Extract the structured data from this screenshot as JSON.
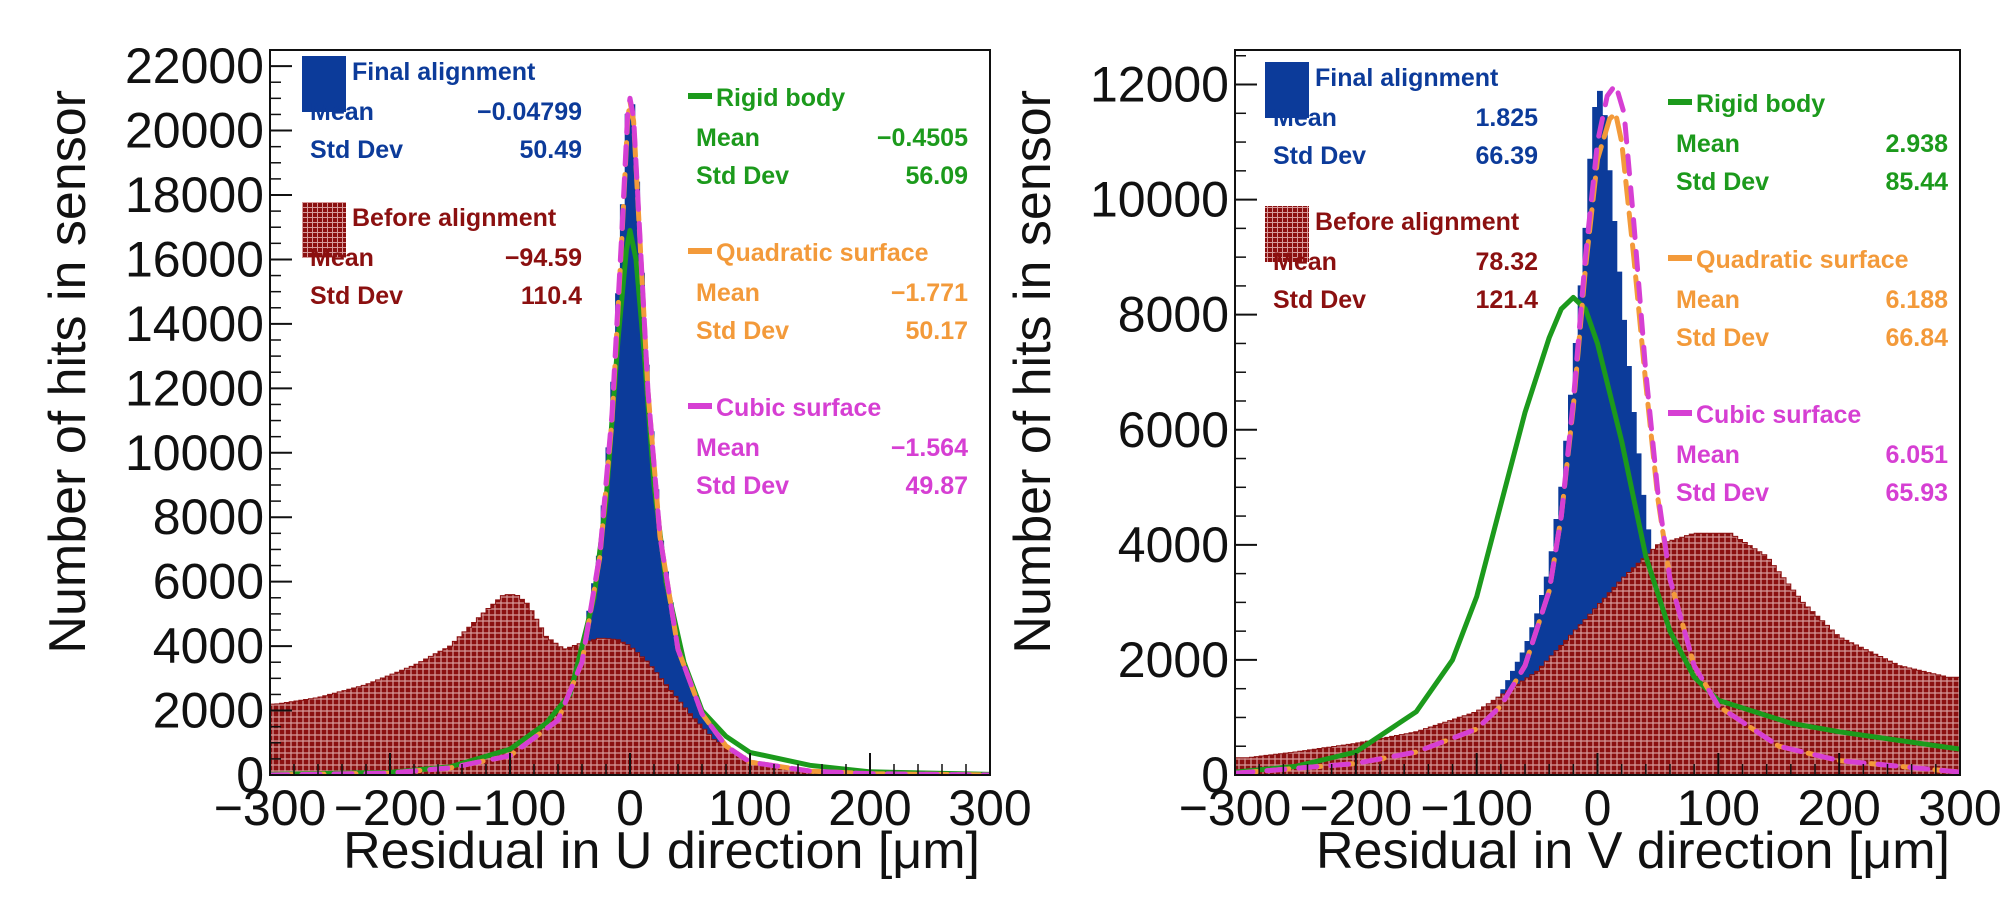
{
  "colors": {
    "final": "#0c3b9a",
    "before": "#8b1010",
    "before_hatch": "#d79a9a",
    "rigid": "#1c9a1c",
    "quadratic": "#f39a3a",
    "cubic": "#d63fd3",
    "axis": "#111111"
  },
  "chart_data": [
    {
      "type": "histogram",
      "xlabel": "Residual in U direction [μm]",
      "ylabel": "Number of hits in sensor",
      "xlim": [
        -300,
        300
      ],
      "ylim": [
        0,
        22500
      ],
      "xticks": [
        "−300",
        "−200",
        "−100",
        "0",
        "100",
        "200",
        "300"
      ],
      "xtick_values": [
        -300,
        -200,
        -100,
        0,
        100,
        200,
        300
      ],
      "yticks": [
        "0",
        "2000",
        "4000",
        "6000",
        "8000",
        "10000",
        "12000",
        "14000",
        "16000",
        "18000",
        "20000",
        "22000"
      ],
      "ytick_values": [
        0,
        2000,
        4000,
        6000,
        8000,
        10000,
        12000,
        14000,
        16000,
        18000,
        20000,
        22000
      ],
      "series": [
        {
          "key": "final",
          "name": "Final alignment",
          "style": "filled",
          "points": [
            [
              -300,
              0
            ],
            [
              -200,
              60
            ],
            [
              -150,
              250
            ],
            [
              -100,
              700
            ],
            [
              -60,
              1900
            ],
            [
              -40,
              3800
            ],
            [
              -25,
              7000
            ],
            [
              -15,
              11500
            ],
            [
              -7,
              17000
            ],
            [
              -2,
              20500
            ],
            [
              0,
              21400
            ],
            [
              3,
              20500
            ],
            [
              8,
              17000
            ],
            [
              15,
              12000
            ],
            [
              25,
              7500
            ],
            [
              40,
              3900
            ],
            [
              60,
              1900
            ],
            [
              80,
              900
            ],
            [
              100,
              400
            ],
            [
              150,
              120
            ],
            [
              200,
              40
            ],
            [
              300,
              0
            ]
          ],
          "stats": {
            "mean": "−0.04799",
            "std": "50.49"
          }
        },
        {
          "key": "before",
          "name": "Before alignment",
          "style": "hatched",
          "points": [
            [
              -295,
              2200
            ],
            [
              -260,
              2400
            ],
            [
              -220,
              2800
            ],
            [
              -180,
              3400
            ],
            [
              -150,
              4000
            ],
            [
              -120,
              5100
            ],
            [
              -105,
              5600
            ],
            [
              -95,
              5600
            ],
            [
              -85,
              5300
            ],
            [
              -70,
              4300
            ],
            [
              -55,
              3900
            ],
            [
              -40,
              4100
            ],
            [
              -25,
              4250
            ],
            [
              -10,
              4200
            ],
            [
              0,
              4000
            ],
            [
              15,
              3500
            ],
            [
              30,
              2800
            ],
            [
              50,
              1900
            ],
            [
              70,
              1100
            ],
            [
              100,
              450
            ],
            [
              150,
              150
            ],
            [
              200,
              60
            ],
            [
              290,
              30
            ]
          ],
          "stats": {
            "mean": "−94.59",
            "std": "110.4"
          }
        },
        {
          "key": "rigid",
          "name": "Rigid body",
          "style": "line",
          "points": [
            [
              -300,
              20
            ],
            [
              -200,
              80
            ],
            [
              -150,
              250
            ],
            [
              -100,
              800
            ],
            [
              -70,
              1600
            ],
            [
              -50,
              2500
            ],
            [
              -30,
              5500
            ],
            [
              -20,
              8500
            ],
            [
              -10,
              13500
            ],
            [
              -3,
              16300
            ],
            [
              0,
              16900
            ],
            [
              5,
              16000
            ],
            [
              12,
              13000
            ],
            [
              20,
              9000
            ],
            [
              30,
              6000
            ],
            [
              45,
              3500
            ],
            [
              60,
              2000
            ],
            [
              80,
              1200
            ],
            [
              100,
              700
            ],
            [
              150,
              300
            ],
            [
              200,
              100
            ],
            [
              300,
              20
            ]
          ],
          "stats": {
            "mean": "−0.4505",
            "std": "56.09"
          }
        },
        {
          "key": "quadratic",
          "name": "Quadratic surface",
          "style": "dashed",
          "points": [
            [
              -300,
              0
            ],
            [
              -200,
              60
            ],
            [
              -150,
              220
            ],
            [
              -100,
              600
            ],
            [
              -60,
              1700
            ],
            [
              -40,
              3500
            ],
            [
              -25,
              6800
            ],
            [
              -15,
              11000
            ],
            [
              -7,
              16500
            ],
            [
              -2,
              20300
            ],
            [
              0,
              20900
            ],
            [
              3,
              20300
            ],
            [
              8,
              16800
            ],
            [
              15,
              11900
            ],
            [
              25,
              7400
            ],
            [
              40,
              3900
            ],
            [
              60,
              1900
            ],
            [
              80,
              900
            ],
            [
              100,
              400
            ],
            [
              150,
              120
            ],
            [
              200,
              40
            ],
            [
              300,
              0
            ]
          ],
          "stats": {
            "mean": "−1.771",
            "std": "50.17"
          }
        },
        {
          "key": "cubic",
          "name": "Cubic surface",
          "style": "dashed",
          "points": [
            [
              -300,
              0
            ],
            [
              -200,
              60
            ],
            [
              -150,
              220
            ],
            [
              -100,
              600
            ],
            [
              -60,
              1700
            ],
            [
              -40,
              3500
            ],
            [
              -25,
              6900
            ],
            [
              -15,
              11200
            ],
            [
              -7,
              16700
            ],
            [
              -2,
              20500
            ],
            [
              0,
              21000
            ],
            [
              3,
              20400
            ],
            [
              8,
              16900
            ],
            [
              15,
              11900
            ],
            [
              25,
              7400
            ],
            [
              40,
              3900
            ],
            [
              60,
              1900
            ],
            [
              80,
              900
            ],
            [
              100,
              400
            ],
            [
              150,
              120
            ],
            [
              200,
              40
            ],
            [
              300,
              0
            ]
          ],
          "stats": {
            "mean": "−1.564",
            "std": "49.87"
          }
        }
      ],
      "legend": {
        "mean_label": "Mean",
        "std_label": "Std Dev"
      }
    },
    {
      "type": "histogram",
      "xlabel": "Residual in V direction [μm]",
      "ylabel": "Number of hits in sensor",
      "xlim": [
        -300,
        300
      ],
      "ylim": [
        0,
        12600
      ],
      "xticks": [
        "−300",
        "−200",
        "−100",
        "0",
        "100",
        "200",
        "300"
      ],
      "xtick_values": [
        -300,
        -200,
        -100,
        0,
        100,
        200,
        300
      ],
      "yticks": [
        "0",
        "2000",
        "4000",
        "6000",
        "8000",
        "10000",
        "12000"
      ],
      "ytick_values": [
        0,
        2000,
        4000,
        6000,
        8000,
        10000,
        12000
      ],
      "series": [
        {
          "key": "final",
          "name": "Final alignment",
          "style": "filled",
          "points": [
            [
              -300,
              0
            ],
            [
              -200,
              150
            ],
            [
              -150,
              400
            ],
            [
              -100,
              900
            ],
            [
              -80,
              1400
            ],
            [
              -60,
              2200
            ],
            [
              -50,
              2800
            ],
            [
              -40,
              3600
            ],
            [
              -30,
              5000
            ],
            [
              -20,
              7000
            ],
            [
              -10,
              9500
            ],
            [
              -5,
              11000
            ],
            [
              0,
              12000
            ],
            [
              5,
              11700
            ],
            [
              10,
              10500
            ],
            [
              20,
              8300
            ],
            [
              30,
              6300
            ],
            [
              40,
              4500
            ],
            [
              50,
              3300
            ],
            [
              60,
              2500
            ],
            [
              80,
              1500
            ],
            [
              100,
              900
            ],
            [
              150,
              400
            ],
            [
              200,
              150
            ],
            [
              300,
              0
            ]
          ],
          "stats": {
            "mean": "1.825",
            "std": "66.39"
          }
        },
        {
          "key": "before",
          "name": "Before alignment",
          "style": "hatched",
          "points": [
            [
              -290,
              300
            ],
            [
              -250,
              400
            ],
            [
              -200,
              550
            ],
            [
              -150,
              750
            ],
            [
              -100,
              1100
            ],
            [
              -50,
              1800
            ],
            [
              -10,
              2700
            ],
            [
              20,
              3400
            ],
            [
              50,
              4000
            ],
            [
              80,
              4200
            ],
            [
              110,
              4200
            ],
            [
              140,
              3800
            ],
            [
              170,
              3000
            ],
            [
              200,
              2400
            ],
            [
              250,
              1900
            ],
            [
              290,
              1700
            ]
          ],
          "stats": {
            "mean": "78.32",
            "std": "121.4"
          }
        },
        {
          "key": "rigid",
          "name": "Rigid body",
          "style": "line",
          "points": [
            [
              -300,
              50
            ],
            [
              -250,
              150
            ],
            [
              -200,
              400
            ],
            [
              -150,
              1100
            ],
            [
              -120,
              2000
            ],
            [
              -100,
              3100
            ],
            [
              -80,
              4700
            ],
            [
              -60,
              6300
            ],
            [
              -40,
              7600
            ],
            [
              -30,
              8100
            ],
            [
              -20,
              8300
            ],
            [
              -10,
              8100
            ],
            [
              0,
              7500
            ],
            [
              20,
              5800
            ],
            [
              40,
              3800
            ],
            [
              60,
              2500
            ],
            [
              80,
              1700
            ],
            [
              100,
              1300
            ],
            [
              130,
              1100
            ],
            [
              160,
              900
            ],
            [
              200,
              750
            ],
            [
              250,
              600
            ],
            [
              300,
              450
            ]
          ],
          "stats": {
            "mean": "2.938",
            "std": "85.44"
          }
        },
        {
          "key": "quadratic",
          "name": "Quadratic surface",
          "style": "dashed",
          "points": [
            [
              -300,
              30
            ],
            [
              -200,
              200
            ],
            [
              -150,
              400
            ],
            [
              -100,
              800
            ],
            [
              -80,
              1200
            ],
            [
              -60,
              1900
            ],
            [
              -40,
              3200
            ],
            [
              -30,
              4500
            ],
            [
              -20,
              6400
            ],
            [
              -10,
              8800
            ],
            [
              0,
              10700
            ],
            [
              10,
              11400
            ],
            [
              15,
              11500
            ],
            [
              20,
              11000
            ],
            [
              30,
              9000
            ],
            [
              40,
              6800
            ],
            [
              50,
              4800
            ],
            [
              60,
              3400
            ],
            [
              80,
              1900
            ],
            [
              100,
              1200
            ],
            [
              150,
              500
            ],
            [
              200,
              250
            ],
            [
              300,
              50
            ]
          ],
          "stats": {
            "mean": "6.188",
            "std": "66.84"
          }
        },
        {
          "key": "cubic",
          "name": "Cubic surface",
          "style": "dashed",
          "points": [
            [
              -300,
              30
            ],
            [
              -200,
              200
            ],
            [
              -150,
              400
            ],
            [
              -100,
              800
            ],
            [
              -80,
              1200
            ],
            [
              -60,
              1900
            ],
            [
              -40,
              3200
            ],
            [
              -30,
              4500
            ],
            [
              -20,
              6500
            ],
            [
              -10,
              9000
            ],
            [
              0,
              11000
            ],
            [
              8,
              11800
            ],
            [
              15,
              12000
            ],
            [
              22,
              11500
            ],
            [
              30,
              9600
            ],
            [
              40,
              7000
            ],
            [
              50,
              4900
            ],
            [
              60,
              3400
            ],
            [
              80,
              1900
            ],
            [
              100,
              1200
            ],
            [
              150,
              500
            ],
            [
              200,
              250
            ],
            [
              300,
              50
            ]
          ],
          "stats": {
            "mean": "6.051",
            "std": "65.93"
          }
        }
      ],
      "legend": {
        "mean_label": "Mean",
        "std_label": "Std Dev"
      }
    }
  ]
}
